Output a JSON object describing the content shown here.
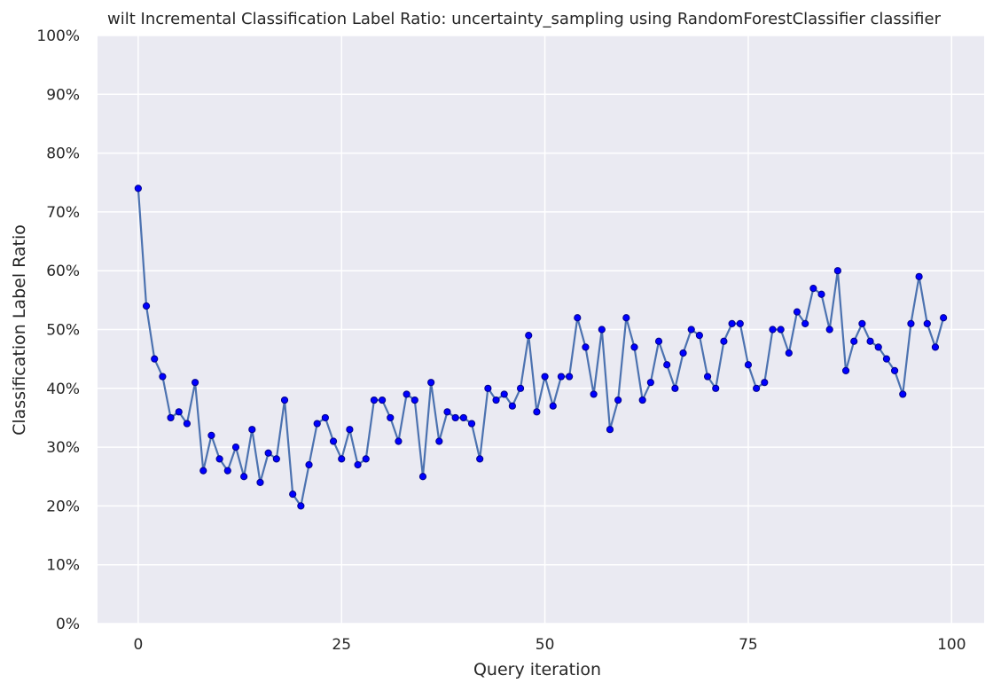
{
  "chart_data": {
    "type": "line",
    "title": "wilt Incremental Classification Label Ratio: uncertainty_sampling using RandomForestClassifier classifier",
    "xlabel": "Query iteration",
    "ylabel": "Classification Label Ratio",
    "xlim": [
      -5,
      104
    ],
    "ylim": [
      0,
      1
    ],
    "x_ticks": [
      0,
      25,
      50,
      75,
      100
    ],
    "x_tick_labels": [
      "0",
      "25",
      "50",
      "75",
      "100"
    ],
    "y_ticks": [
      0,
      0.1,
      0.2,
      0.3,
      0.4,
      0.5,
      0.6,
      0.7,
      0.8,
      0.9,
      1.0
    ],
    "y_tick_labels": [
      "0%",
      "10%",
      "20%",
      "30%",
      "40%",
      "50%",
      "60%",
      "70%",
      "80%",
      "90%",
      "100%"
    ],
    "grid": true,
    "legend": "none",
    "colors": {
      "background": "#eaeaf2",
      "grid": "#ffffff",
      "line": "#4c72b0",
      "marker_fill": "#0000ff",
      "marker_edge": "#00008b"
    },
    "series": [
      {
        "x": [
          0,
          1,
          2,
          3,
          4,
          5,
          6,
          7,
          8,
          9,
          10,
          11,
          12,
          13,
          14,
          15,
          16,
          17,
          18,
          19,
          20,
          21,
          22,
          23,
          24,
          25,
          26,
          27,
          28,
          29,
          30,
          31,
          32,
          33,
          34,
          35,
          36,
          37,
          38,
          39,
          40,
          41,
          42,
          43,
          44,
          45,
          46,
          47,
          48,
          49,
          50,
          51,
          52,
          53,
          54,
          55,
          56,
          57,
          58,
          59,
          60,
          61,
          62,
          63,
          64,
          65,
          66,
          67,
          68,
          69,
          70,
          71,
          72,
          73,
          74,
          75,
          76,
          77,
          78,
          79,
          80,
          81,
          82,
          83,
          84,
          85,
          86,
          87,
          88,
          89,
          90,
          91,
          92,
          93,
          94,
          95,
          96,
          97,
          98,
          99
        ],
        "values": [
          0.74,
          0.54,
          0.45,
          0.42,
          0.35,
          0.36,
          0.34,
          0.41,
          0.26,
          0.32,
          0.28,
          0.26,
          0.3,
          0.25,
          0.33,
          0.24,
          0.29,
          0.28,
          0.38,
          0.22,
          0.2,
          0.27,
          0.34,
          0.35,
          0.31,
          0.28,
          0.33,
          0.27,
          0.28,
          0.38,
          0.38,
          0.35,
          0.31,
          0.39,
          0.38,
          0.25,
          0.41,
          0.31,
          0.36,
          0.35,
          0.35,
          0.34,
          0.28,
          0.4,
          0.38,
          0.39,
          0.37,
          0.4,
          0.49,
          0.36,
          0.42,
          0.37,
          0.42,
          0.42,
          0.52,
          0.47,
          0.39,
          0.5,
          0.33,
          0.38,
          0.52,
          0.47,
          0.38,
          0.41,
          0.48,
          0.44,
          0.4,
          0.46,
          0.5,
          0.49,
          0.42,
          0.4,
          0.48,
          0.51,
          0.51,
          0.44,
          0.4,
          0.41,
          0.5,
          0.5,
          0.46,
          0.53,
          0.51,
          0.57,
          0.56,
          0.5,
          0.6,
          0.43,
          0.48,
          0.51,
          0.48,
          0.47,
          0.45,
          0.43,
          0.39,
          0.51,
          0.59,
          0.51,
          0.47,
          0.52
        ]
      }
    ]
  }
}
